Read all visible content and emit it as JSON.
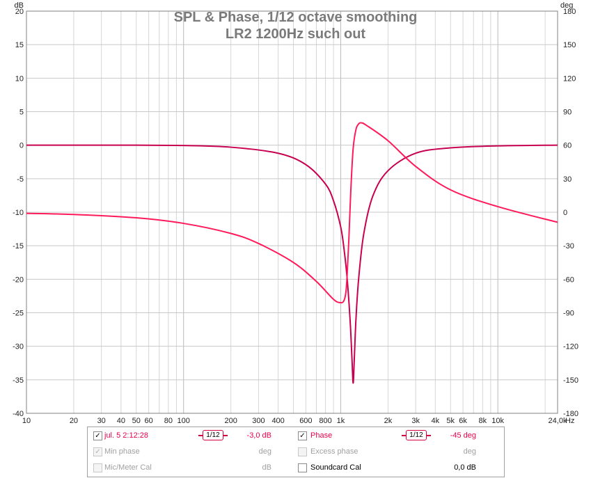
{
  "chart_data": {
    "type": "line",
    "title": "SPL & Phase, 1/12 octave smoothing",
    "subtitle": "LR2 1200Hz such out",
    "x_scale": "log",
    "xlim": [
      10,
      24000
    ],
    "x_unit": "Hz",
    "x_ticks": [
      "10",
      "20",
      "30",
      "40",
      "50",
      "60",
      "80",
      "100",
      "200",
      "300",
      "400",
      "600",
      "800",
      "1k",
      "2k",
      "3k",
      "4k",
      "5k",
      "6k",
      "8k",
      "10k",
      "24,0k"
    ],
    "left_axis": {
      "unit": "dB",
      "ylim": [
        -40,
        20
      ],
      "ticks": [
        "20",
        "15",
        "10",
        "5",
        "0",
        "-5",
        "-10",
        "-15",
        "-20",
        "-25",
        "-30",
        "-35",
        "-40"
      ]
    },
    "right_axis": {
      "unit": "deg",
      "ylim": [
        -180,
        180
      ],
      "ticks": [
        "180",
        "150",
        "120",
        "90",
        "60",
        "30",
        "0",
        "-30",
        "-60",
        "-90",
        "-120",
        "-150",
        "-180"
      ]
    },
    "grid": true,
    "series": [
      {
        "name": "jul. 5 2:12:28",
        "axis": "left",
        "color": "#c80050",
        "x": [
          10,
          20,
          50,
          100,
          200,
          400,
          600,
          800,
          900,
          1000,
          1050,
          1100,
          1150,
          1180,
          1200,
          1220,
          1250,
          1300,
          1400,
          1600,
          2000,
          3000,
          5000,
          10000,
          24000
        ],
        "y": [
          0.0,
          0.0,
          0.0,
          -0.05,
          -0.3,
          -1.2,
          -2.9,
          -5.8,
          -8.3,
          -12.2,
          -15.5,
          -20.0,
          -26.5,
          -32.0,
          -35.5,
          -32.0,
          -26.0,
          -20.0,
          -13.3,
          -7.6,
          -3.8,
          -1.2,
          -0.4,
          -0.1,
          0.0
        ]
      },
      {
        "name": "Phase",
        "axis": "right",
        "color": "#ff1a5a",
        "x": [
          10,
          20,
          50,
          100,
          200,
          300,
          500,
          700,
          900,
          1000,
          1050,
          1080,
          1100,
          1130,
          1160,
          1200,
          1250,
          1300,
          1350,
          1450,
          2000,
          3000,
          5000,
          10000,
          24000
        ],
        "y": [
          -1,
          -2,
          -5,
          -10,
          -19,
          -28,
          -45,
          -62,
          -78,
          -81,
          -79,
          -71,
          -55,
          -20,
          20,
          57,
          74,
          79,
          80,
          78,
          64,
          41,
          20,
          5,
          -9
        ]
      }
    ],
    "legend": {
      "rows": [
        {
          "checked": true,
          "enabled": true,
          "name": "jul. 5 2:12:28",
          "smoothing": "1/12",
          "value": "-3,0 dB",
          "right_checked": true,
          "right_enabled": true,
          "right_name": "Phase",
          "right_smoothing": "1/12",
          "right_value": "-45 deg"
        },
        {
          "checked": true,
          "enabled": false,
          "name": "Min phase",
          "value": "deg",
          "right_checked": false,
          "right_enabled": false,
          "right_name": "Excess phase",
          "right_value": "deg"
        },
        {
          "checked": false,
          "enabled": false,
          "name": "Mic/Meter Cal",
          "value": "dB",
          "right_checked": false,
          "right_enabled": true,
          "right_name": "Soundcard Cal",
          "right_value": "0,0 dB"
        }
      ]
    }
  }
}
